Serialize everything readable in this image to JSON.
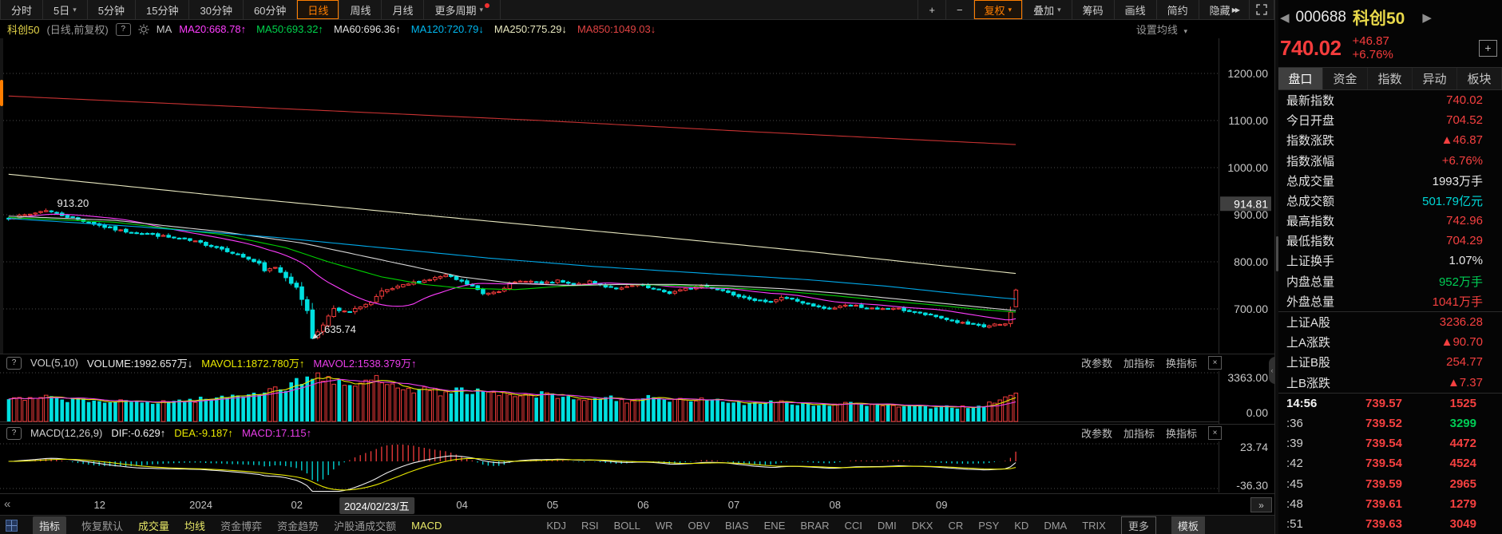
{
  "toolbar": {
    "left": [
      {
        "label": "分时"
      },
      {
        "label": "5日",
        "dropdown": true
      },
      {
        "label": "5分钟"
      },
      {
        "label": "15分钟"
      },
      {
        "label": "30分钟"
      },
      {
        "label": "60分钟"
      },
      {
        "label": "日线",
        "active": true
      },
      {
        "label": "周线"
      },
      {
        "label": "月线"
      },
      {
        "label": "更多周期",
        "dropdown": true,
        "dot": true
      }
    ],
    "right": [
      {
        "label": "+"
      },
      {
        "label": "−"
      },
      {
        "label": "复权",
        "dropdown": true,
        "active": true
      },
      {
        "label": "叠加",
        "dropdown": true
      },
      {
        "label": "筹码"
      },
      {
        "label": "画线"
      },
      {
        "label": "简约"
      },
      {
        "label": "隐藏",
        "suffix": "▶▶"
      }
    ]
  },
  "ma_bar": {
    "symbol": "科创50",
    "mode": "(日线,前复权)",
    "help": "?",
    "prefix": "MA",
    "items": [
      {
        "label": "MA20:668.78",
        "dir": "↑",
        "color": "#ff3dff"
      },
      {
        "label": "MA50:693.32",
        "dir": "↑",
        "color": "#00d24b"
      },
      {
        "label": "MA60:696.36",
        "dir": "↑",
        "color": "#e0e0e0"
      },
      {
        "label": "MA120:720.79",
        "dir": "↓",
        "color": "#00b7ee"
      },
      {
        "label": "MA250:775.29",
        "dir": "↓",
        "color": "#e9e9c0"
      },
      {
        "label": "MA850:1049.03",
        "dir": "↓",
        "color": "#e04343"
      }
    ],
    "settings": "设置均线"
  },
  "vol_header": {
    "help": "?",
    "items": [
      {
        "label": "VOL(5,10)",
        "color": "#cfcfcf"
      },
      {
        "label": "VOLUME:1992.657万",
        "dir": "↓",
        "color": "#e8e8e8"
      },
      {
        "label": "MAVOL1:1872.780万",
        "dir": "↑",
        "color": "#e8e800"
      },
      {
        "label": "MAVOL2:1538.379万",
        "dir": "↑",
        "color": "#e83de8"
      }
    ],
    "tools": [
      "改参数",
      "加指标",
      "换指标"
    ],
    "close": "×"
  },
  "macd_header": {
    "help": "?",
    "items": [
      {
        "label": "MACD(12,26,9)",
        "color": "#cfcfcf"
      },
      {
        "label": "DIF:-0.629",
        "dir": "↑",
        "color": "#f0f0f0"
      },
      {
        "label": "DEA:-9.187",
        "dir": "↑",
        "color": "#e8e800"
      },
      {
        "label": "MACD:17.115",
        "dir": "↑",
        "color": "#e83de8"
      }
    ],
    "tools": [
      "改参数",
      "加指标",
      "换指标"
    ],
    "close": "×"
  },
  "date_axis": {
    "prev": "«",
    "next": "»",
    "ticks": [
      {
        "label": "12",
        "day": 17
      },
      {
        "label": "2024",
        "day": 36
      },
      {
        "label": "02",
        "day": 54
      },
      {
        "label": "2024/02/23/五",
        "day": 69,
        "highlight": true
      },
      {
        "label": "04",
        "day": 85
      },
      {
        "label": "05",
        "day": 102
      },
      {
        "label": "06",
        "day": 119
      },
      {
        "label": "07",
        "day": 136
      },
      {
        "label": "08",
        "day": 155
      },
      {
        "label": "09",
        "day": 175
      }
    ]
  },
  "bottom_bar": {
    "menu": "指标",
    "items": [
      {
        "label": "恢复默认",
        "c": "dim"
      },
      {
        "label": "成交量",
        "c": "yellow"
      },
      {
        "label": "均线",
        "c": "yellow"
      },
      {
        "label": "资金博弈"
      },
      {
        "label": "资金趋势"
      },
      {
        "label": "沪股通成交额"
      },
      {
        "label": "MACD",
        "c": "yellow",
        "gapAfter": true
      },
      {
        "label": "KDJ"
      },
      {
        "label": "RSI"
      },
      {
        "label": "BOLL"
      },
      {
        "label": "WR"
      },
      {
        "label": "OBV"
      },
      {
        "label": "BIAS"
      },
      {
        "label": "ENE"
      },
      {
        "label": "BRAR"
      },
      {
        "label": "CCI"
      },
      {
        "label": "DMI"
      },
      {
        "label": "DKX"
      },
      {
        "label": "CR"
      },
      {
        "label": "PSY"
      },
      {
        "label": "KD"
      },
      {
        "label": "DMA"
      },
      {
        "label": "TRIX"
      }
    ],
    "more": "更多",
    "template": "模板"
  },
  "quote_panel": {
    "header": {
      "code": "000688",
      "name": "科创50",
      "price": "740.02",
      "change": "+46.87",
      "pct": "+6.76%",
      "prev": "◀",
      "next": "▶",
      "add": "+"
    },
    "tabs": [
      {
        "label": "盘口",
        "active": true
      },
      {
        "label": "资金"
      },
      {
        "label": "指数"
      },
      {
        "label": "异动"
      },
      {
        "label": "板块"
      }
    ],
    "rows": [
      {
        "label": "最新指数",
        "value": "740.02",
        "c": "red"
      },
      {
        "label": "今日开盘",
        "value": "704.52",
        "c": "red"
      },
      {
        "label": "指数涨跌",
        "value": "▲46.87",
        "c": "red"
      },
      {
        "label": "指数涨幅",
        "value": "+6.76%",
        "c": "red"
      },
      {
        "label": "总成交量",
        "value": "1993万手",
        "c": "white"
      },
      {
        "label": "总成交额",
        "value": "501.79亿元",
        "c": "cyan"
      },
      {
        "label": "最高指数",
        "value": "742.96",
        "c": "red"
      },
      {
        "label": "最低指数",
        "value": "704.29",
        "c": "red"
      },
      {
        "label": "上证换手",
        "value": "1.07%",
        "c": "white"
      },
      {
        "label": "内盘总量",
        "value": "952万手",
        "c": "green"
      },
      {
        "label": "外盘总量",
        "value": "1041万手",
        "c": "red"
      }
    ],
    "rows2": [
      {
        "label": "上证A股",
        "value": "3236.28",
        "c": "red"
      },
      {
        "label": "上A涨跌",
        "value": "▲90.70",
        "c": "red"
      },
      {
        "label": "上证B股",
        "value": "254.77",
        "c": "red"
      },
      {
        "label": "上B涨跌",
        "value": "▲7.37",
        "c": "red"
      }
    ],
    "ticks": [
      {
        "time": "14:56",
        "price": "739.57",
        "vol": "1525",
        "pc": "red",
        "vc": "red",
        "first": true
      },
      {
        "time": ":36",
        "price": "739.52",
        "vol": "3299",
        "pc": "red",
        "vc": "green"
      },
      {
        "time": ":39",
        "price": "739.54",
        "vol": "4472",
        "pc": "red",
        "vc": "red"
      },
      {
        "time": ":42",
        "price": "739.54",
        "vol": "4524",
        "pc": "red",
        "vc": "red"
      },
      {
        "time": ":45",
        "price": "739.59",
        "vol": "2965",
        "pc": "red",
        "vc": "red"
      },
      {
        "time": ":48",
        "price": "739.61",
        "vol": "1279",
        "pc": "red",
        "vc": "red"
      },
      {
        "time": ":51",
        "price": "739.63",
        "vol": "3049",
        "pc": "red",
        "vc": "red"
      }
    ]
  },
  "chart_data": {
    "type": "candlestick",
    "symbol": "科创50",
    "code": "000688",
    "period": "日线",
    "adjust": "前复权",
    "n_days": 190,
    "y_ticks": [
      1200,
      1100,
      1000,
      900,
      800,
      700
    ],
    "y_cursor_label": "914.81",
    "x_cursor_label": "2024/02/23/五",
    "annotations": [
      {
        "text": "913.20",
        "day": 7,
        "value": 913.2,
        "kind": "high"
      },
      {
        "text": "635.74",
        "day": 57,
        "value": 635.74,
        "kind": "low"
      }
    ],
    "last_day": {
      "open": 704.52,
      "high": 742.96,
      "low": 704.29,
      "close": 740.02,
      "prev_close": 693.15,
      "volume_wan": 1993
    },
    "close_path": [
      [
        0,
        893
      ],
      [
        4,
        901
      ],
      [
        7,
        910
      ],
      [
        9,
        902
      ],
      [
        12,
        893
      ],
      [
        15,
        884
      ],
      [
        18,
        874
      ],
      [
        21,
        866
      ],
      [
        24,
        862
      ],
      [
        27,
        858
      ],
      [
        30,
        852
      ],
      [
        33,
        847
      ],
      [
        36,
        840
      ],
      [
        39,
        831
      ],
      [
        42,
        820
      ],
      [
        45,
        806
      ],
      [
        47,
        795
      ],
      [
        48,
        780
      ],
      [
        50,
        789
      ],
      [
        52,
        768
      ],
      [
        54,
        744
      ],
      [
        56,
        698
      ],
      [
        57,
        637
      ],
      [
        58,
        652
      ],
      [
        59,
        668
      ],
      [
        60,
        684
      ],
      [
        61,
        699
      ],
      [
        62,
        696
      ],
      [
        64,
        692
      ],
      [
        66,
        706
      ],
      [
        68,
        713
      ],
      [
        70,
        736
      ],
      [
        73,
        746
      ],
      [
        76,
        756
      ],
      [
        79,
        763
      ],
      [
        82,
        771
      ],
      [
        84,
        762
      ],
      [
        87,
        748
      ],
      [
        89,
        732
      ],
      [
        92,
        739
      ],
      [
        94,
        753
      ],
      [
        97,
        761
      ],
      [
        100,
        753
      ],
      [
        103,
        759
      ],
      [
        106,
        750
      ],
      [
        109,
        757
      ],
      [
        112,
        748
      ],
      [
        115,
        743
      ],
      [
        118,
        751
      ],
      [
        121,
        741
      ],
      [
        124,
        734
      ],
      [
        127,
        742
      ],
      [
        130,
        749
      ],
      [
        133,
        743
      ],
      [
        136,
        731
      ],
      [
        139,
        723
      ],
      [
        142,
        713
      ],
      [
        145,
        725
      ],
      [
        148,
        717
      ],
      [
        151,
        705
      ],
      [
        154,
        699
      ],
      [
        157,
        709
      ],
      [
        160,
        705
      ],
      [
        163,
        698
      ],
      [
        166,
        702
      ],
      [
        169,
        695
      ],
      [
        172,
        688
      ],
      [
        175,
        681
      ],
      [
        178,
        672
      ],
      [
        181,
        665
      ],
      [
        183,
        662
      ],
      [
        185,
        667
      ],
      [
        186,
        665
      ],
      [
        187,
        668
      ],
      [
        188,
        693.15
      ],
      [
        189,
        740.02
      ]
    ],
    "vol_path": [
      [
        0,
        1500
      ],
      [
        8,
        1650
      ],
      [
        15,
        1450
      ],
      [
        22,
        1350
      ],
      [
        30,
        1400
      ],
      [
        38,
        1600
      ],
      [
        44,
        1900
      ],
      [
        48,
        2200
      ],
      [
        52,
        2400
      ],
      [
        55,
        2900
      ],
      [
        57,
        3300
      ],
      [
        59,
        3100
      ],
      [
        61,
        2700
      ],
      [
        64,
        2500
      ],
      [
        67,
        2800
      ],
      [
        70,
        3000
      ],
      [
        73,
        2600
      ],
      [
        76,
        2300
      ],
      [
        79,
        2100
      ],
      [
        82,
        2000
      ],
      [
        85,
        2250
      ],
      [
        88,
        2050
      ],
      [
        92,
        1850
      ],
      [
        96,
        1750
      ],
      [
        100,
        1900
      ],
      [
        104,
        1650
      ],
      [
        108,
        1500
      ],
      [
        112,
        1700
      ],
      [
        116,
        1450
      ],
      [
        120,
        1650
      ],
      [
        124,
        1400
      ],
      [
        128,
        1550
      ],
      [
        132,
        1450
      ],
      [
        136,
        1350
      ],
      [
        140,
        1300
      ],
      [
        144,
        1500
      ],
      [
        148,
        1250
      ],
      [
        152,
        1150
      ],
      [
        156,
        1300
      ],
      [
        160,
        1200
      ],
      [
        164,
        1150
      ],
      [
        168,
        1050
      ],
      [
        172,
        1000
      ],
      [
        176,
        1050
      ],
      [
        180,
        1000
      ],
      [
        183,
        1150
      ],
      [
        185,
        1350
      ],
      [
        187,
        1600
      ],
      [
        188,
        1750
      ],
      [
        189,
        1993
      ]
    ],
    "ma_displayed": {
      "MA20": 668.78,
      "MA50": 693.32,
      "MA60": 696.36,
      "MA120": 720.79,
      "MA250": 775.29,
      "MA850": 1049.03
    },
    "ma20_color": "#ff3dff",
    "ma_paths": [
      {
        "name": "MA50",
        "color": "#00d200",
        "path": [
          [
            0,
            894
          ],
          [
            20,
            884
          ],
          [
            40,
            858
          ],
          [
            52,
            830
          ],
          [
            60,
            800
          ],
          [
            70,
            768
          ],
          [
            78,
            752
          ],
          [
            85,
            744
          ],
          [
            95,
            741
          ],
          [
            105,
            749
          ],
          [
            115,
            752
          ],
          [
            125,
            750
          ],
          [
            135,
            745
          ],
          [
            145,
            738
          ],
          [
            155,
            728
          ],
          [
            165,
            717
          ],
          [
            175,
            707
          ],
          [
            182,
            699
          ],
          [
            189,
            693.3
          ]
        ]
      },
      {
        "name": "MA60",
        "color": "#d6d6d6",
        "path": [
          [
            0,
            897
          ],
          [
            20,
            888
          ],
          [
            40,
            864
          ],
          [
            55,
            840
          ],
          [
            65,
            816
          ],
          [
            75,
            792
          ],
          [
            85,
            768
          ],
          [
            95,
            754
          ],
          [
            105,
            750
          ],
          [
            115,
            752
          ],
          [
            125,
            752
          ],
          [
            135,
            749
          ],
          [
            145,
            743
          ],
          [
            155,
            734
          ],
          [
            165,
            723
          ],
          [
            175,
            712
          ],
          [
            183,
            703
          ],
          [
            189,
            696.4
          ]
        ]
      },
      {
        "name": "MA120",
        "color": "#00a8e8",
        "path": [
          [
            0,
            892
          ],
          [
            25,
            874
          ],
          [
            50,
            852
          ],
          [
            70,
            830
          ],
          [
            90,
            808
          ],
          [
            110,
            790
          ],
          [
            130,
            776
          ],
          [
            150,
            762
          ],
          [
            165,
            748
          ],
          [
            175,
            736
          ],
          [
            183,
            727
          ],
          [
            189,
            720.8
          ]
        ]
      },
      {
        "name": "MA250",
        "color": "#e8e8c0",
        "path": [
          [
            0,
            986
          ],
          [
            40,
            940
          ],
          [
            80,
            897
          ],
          [
            120,
            855
          ],
          [
            150,
            822
          ],
          [
            170,
            798
          ],
          [
            189,
            775.3
          ]
        ]
      },
      {
        "name": "MA850",
        "color": "#c83232",
        "path": [
          [
            0,
            1152
          ],
          [
            50,
            1126
          ],
          [
            100,
            1100
          ],
          [
            140,
            1076
          ],
          [
            189,
            1049
          ]
        ]
      }
    ],
    "volume_pane": {
      "indicator": "VOL(5,10)",
      "axis_max": 3363.0,
      "axis_min": 0.0,
      "mavol1_color": "#e8e800",
      "mavol2_color": "#e83de8"
    },
    "macd_pane": {
      "indicator": "MACD(12,26,9)",
      "axis_max": 23.74,
      "axis_min": -36.3,
      "dif": -0.629,
      "dea": -9.187,
      "macd": 17.115
    },
    "colors": {
      "up": "#f23b3b",
      "down": "#00e0e0",
      "grid": "#4a4a4a",
      "axis_text": "#c8c8c8",
      "cursor_bg": "#3f3f3f"
    }
  }
}
